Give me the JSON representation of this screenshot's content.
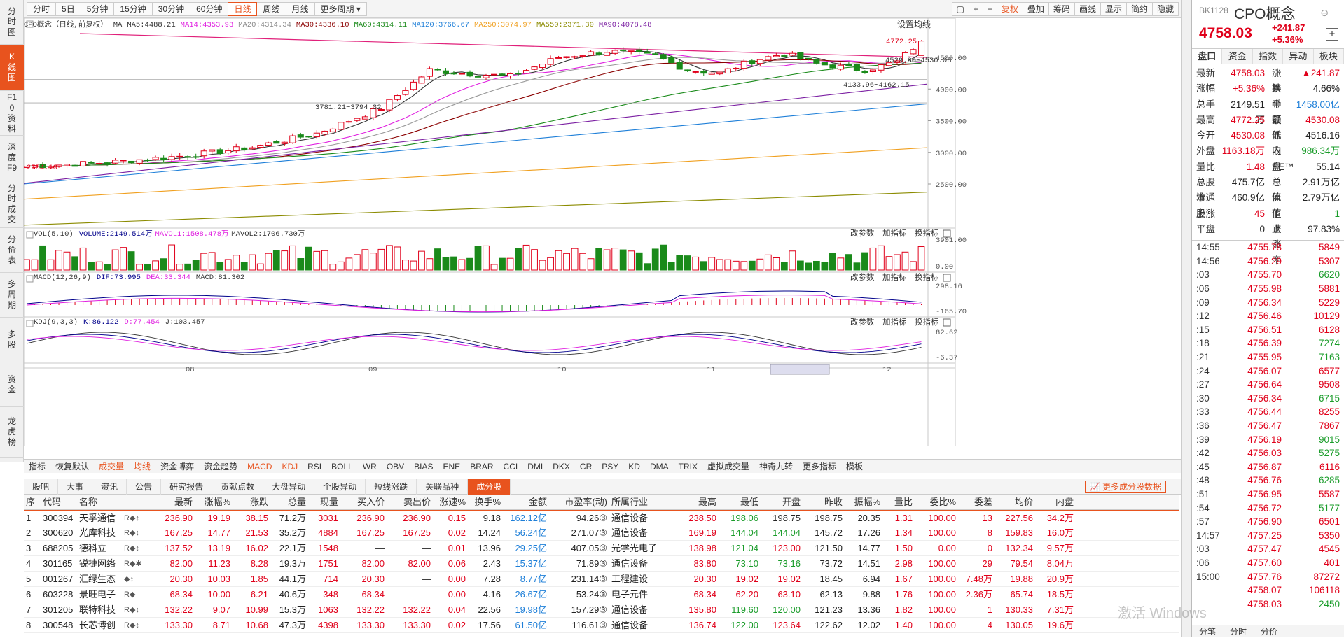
{
  "left_tabs": [
    {
      "label": "分时图",
      "h": 64
    },
    {
      "label": "K线图",
      "h": 66,
      "active": true
    },
    {
      "label": "F10资料",
      "h": 64
    },
    {
      "label": "深度F9",
      "h": 64
    },
    {
      "label": "分时成交",
      "h": 68
    },
    {
      "label": "分价表",
      "h": 64
    },
    {
      "label": "多周期",
      "h": 64
    },
    {
      "label": "多股",
      "h": 64
    },
    {
      "label": "资金",
      "h": 64
    },
    {
      "label": "龙虎榜",
      "h": 72
    }
  ],
  "periods": [
    "分时",
    "5日",
    "5分钟",
    "15分钟",
    "30分钟",
    "60分钟",
    "日线",
    "周线",
    "月线",
    "更多周期"
  ],
  "active_period": "日线",
  "toolbar": [
    "复权",
    "叠加",
    "筹码",
    "画线",
    "显示",
    "简约",
    "隐藏"
  ],
  "chart_title": "CPO概念（日线,前复权）",
  "ma_items": [
    {
      "t": "MA",
      "c": "#333"
    },
    {
      "t": "MA5:4488.21",
      "c": "#333"
    },
    {
      "t": "MA14:4353.93",
      "c": "#e020e0"
    },
    {
      "t": "MA20:4314.34",
      "c": "#888"
    },
    {
      "t": "MA30:4336.10",
      "c": "#8b0000"
    },
    {
      "t": "MA60:4314.11",
      "c": "#1a8a1a"
    },
    {
      "t": "MA120:3766.67",
      "c": "#1e7fd8"
    },
    {
      "t": "MA250:3074.97",
      "c": "#f0a020"
    },
    {
      "t": "MA550:2371.30",
      "c": "#8b8b00"
    },
    {
      "t": "MA90:4078.48",
      "c": "#7b1fa2"
    }
  ],
  "settings_label": "设置均线",
  "annotations": {
    "high": "4772.25",
    "mid": "4529.80~4530.08",
    "low": "4133.96~4162.15",
    "low2": "3781.21~3794.32",
    "start": "2754.19"
  },
  "price_axis": [
    "4500.00",
    "4000.00",
    "3500.00",
    "3000.00",
    "2500.00"
  ],
  "vol": {
    "label": "VOL(5,10)",
    "v": "VOLUME:2149.514万",
    "m1": "MAVOL1:1508.478万",
    "m2": "MAVOL2:1706.730万",
    "axis_top": "3901.00",
    "axis_bot": "0.00"
  },
  "macd": {
    "label": "MACD(12,26,9)",
    "dif": "DIF:73.995",
    "dea": "DEA:33.344",
    "macd": "MACD:81.302",
    "axis_top": "298.16",
    "axis_bot": "-165.70"
  },
  "kdj": {
    "label": "KDJ(9,3,3)",
    "k": "K:86.122",
    "d": "D:77.454",
    "j": "J:103.457",
    "axis_top": "82.62",
    "axis_bot": "-6.37"
  },
  "sub_ctrl": [
    "改参数",
    "加指标",
    "换指标"
  ],
  "date_axis": [
    "08",
    "09",
    "10",
    "11",
    "2025/11/13/四",
    "12"
  ],
  "indicators": [
    "指标",
    "恢复默认",
    "成交量",
    "均线",
    "资金博弈",
    "资金趋势",
    "MACD",
    "KDJ",
    "RSI",
    "BOLL",
    "WR",
    "OBV",
    "BIAS",
    "ENE",
    "BRAR",
    "CCI",
    "DMI",
    "DKX",
    "CR",
    "PSY",
    "KD",
    "DMA",
    "TRIX",
    "虚拟成交量",
    "神奇九转",
    "更多指标",
    "模板"
  ],
  "bottom_tabs": [
    "股吧",
    "大事",
    "资讯",
    "公告",
    "研究报告",
    "贡献点数",
    "大盘异动",
    "个股异动",
    "短线涨跌",
    "关联品种",
    "成分股"
  ],
  "more_btn": "更多成分股数据",
  "table": {
    "headers": [
      "序",
      "代码",
      "名称",
      "",
      "最新",
      "涨幅%",
      "涨跌",
      "总量",
      "现量",
      "买入价",
      "卖出价",
      "涨速%",
      "换手%",
      "金额",
      "市盈率(动)",
      "所属行业",
      "最高",
      "最低",
      "开盘",
      "昨收",
      "振幅%",
      "量比",
      "委比%",
      "委差",
      "均价",
      "内盘"
    ],
    "rows": [
      [
        "1",
        "300394",
        "天孚通信",
        "R◆↕",
        "236.90",
        "19.19",
        "38.15",
        "71.2万",
        "3031",
        "236.90",
        "236.90",
        "0.15",
        "9.18",
        "162.12亿",
        "94.26③",
        "通信设备",
        "238.50",
        "198.06",
        "198.75",
        "198.75",
        "20.35",
        "1.31",
        "100.00",
        "13",
        "227.56",
        "34.2万"
      ],
      [
        "2",
        "300620",
        "光库科技",
        "R◆↕",
        "167.25",
        "14.77",
        "21.53",
        "35.2万",
        "4884",
        "167.25",
        "167.25",
        "0.02",
        "14.24",
        "56.24亿",
        "271.07③",
        "通信设备",
        "169.19",
        "144.04",
        "144.04",
        "145.72",
        "17.26",
        "1.34",
        "100.00",
        "8",
        "159.83",
        "16.0万"
      ],
      [
        "3",
        "688205",
        "德科立",
        "R◆↕",
        "137.52",
        "13.19",
        "16.02",
        "22.1万",
        "1548",
        "—",
        "—",
        "0.01",
        "13.96",
        "29.25亿",
        "407.05③",
        "光学光电子",
        "138.98",
        "121.04",
        "123.00",
        "121.50",
        "14.77",
        "1.50",
        "0.00",
        "0",
        "132.34",
        "9.57万"
      ],
      [
        "4",
        "301165",
        "锐捷网络",
        "R◆✱",
        "82.00",
        "11.23",
        "8.28",
        "19.3万",
        "1751",
        "82.00",
        "82.00",
        "0.06",
        "2.43",
        "15.37亿",
        "71.89③",
        "通信设备",
        "83.80",
        "73.10",
        "73.16",
        "73.72",
        "14.51",
        "2.98",
        "100.00",
        "29",
        "79.54",
        "8.04万"
      ],
      [
        "5",
        "001267",
        "汇绿生态",
        "◆↕",
        "20.30",
        "10.03",
        "1.85",
        "44.1万",
        "714",
        "20.30",
        "—",
        "0.00",
        "7.28",
        "8.77亿",
        "231.14③",
        "工程建设",
        "20.30",
        "19.02",
        "19.02",
        "18.45",
        "6.94",
        "1.67",
        "100.00",
        "7.48万",
        "19.88",
        "20.9万"
      ],
      [
        "6",
        "603228",
        "景旺电子",
        "R◆",
        "68.34",
        "10.00",
        "6.21",
        "40.6万",
        "348",
        "68.34",
        "—",
        "0.00",
        "4.16",
        "26.67亿",
        "53.24③",
        "电子元件",
        "68.34",
        "62.20",
        "63.10",
        "62.13",
        "9.88",
        "1.76",
        "100.00",
        "2.36万",
        "65.74",
        "18.5万"
      ],
      [
        "7",
        "301205",
        "联特科技",
        "R◆↕",
        "132.22",
        "9.07",
        "10.99",
        "15.3万",
        "1063",
        "132.22",
        "132.22",
        "0.04",
        "22.56",
        "19.98亿",
        "157.29③",
        "通信设备",
        "135.80",
        "119.60",
        "120.00",
        "121.23",
        "13.36",
        "1.82",
        "100.00",
        "1",
        "130.33",
        "7.31万"
      ],
      [
        "8",
        "300548",
        "长芯博创",
        "R◆↕",
        "133.30",
        "8.71",
        "10.68",
        "47.3万",
        "4398",
        "133.30",
        "133.30",
        "0.02",
        "17.56",
        "61.50亿",
        "116.61③",
        "通信设备",
        "136.74",
        "122.00",
        "123.64",
        "122.62",
        "12.02",
        "1.40",
        "100.00",
        "4",
        "130.05",
        "19.6万"
      ]
    ]
  },
  "right": {
    "code": "BK1128",
    "name": "CPO概念",
    "price": "4758.03",
    "chg": "+241.87",
    "pct": "+5.36%",
    "tabs": [
      "盘口",
      "资金",
      "指数",
      "异动",
      "板块"
    ],
    "quote": [
      [
        "最新",
        "4758.03",
        "red",
        "涨跌",
        "▲241.87",
        "red"
      ],
      [
        "涨幅",
        "+5.36%",
        "red",
        "换手",
        "4.66%",
        "blk"
      ],
      [
        "总手",
        "2149.51万",
        "blk",
        "金额",
        "1458.00亿",
        "blu"
      ],
      [
        "最高",
        "4772.25",
        "red",
        "最低",
        "4530.08",
        "red"
      ],
      [
        "今开",
        "4530.08",
        "red",
        "昨收",
        "4516.16",
        "blk"
      ],
      [
        "外盘",
        "1163.18万",
        "red",
        "内盘",
        "986.34万",
        "grn"
      ],
      [
        "量比",
        "1.48",
        "red",
        "PE™",
        "55.14",
        "blk"
      ],
      [
        "总股本",
        "475.7亿",
        "blk",
        "总值",
        "2.91万亿",
        "blk"
      ],
      [
        "流通股",
        "460.9亿",
        "blk",
        "流值",
        "2.79万亿",
        "blk"
      ],
      [
        "上涨",
        "45",
        "red",
        "下跌",
        "1",
        "grn"
      ],
      [
        "平盘",
        "0",
        "blk",
        "上涨率",
        "97.83%",
        "blk"
      ]
    ],
    "trades": [
      [
        "14:55",
        "4755.78",
        "5849",
        "red"
      ],
      [
        "14:56",
        "4756.29",
        "5307",
        "red"
      ],
      [
        ":03",
        "4755.70",
        "6620",
        "grn"
      ],
      [
        ":06",
        "4755.98",
        "5881",
        "red"
      ],
      [
        ":09",
        "4756.34",
        "5229",
        "red"
      ],
      [
        ":12",
        "4756.46",
        "10129",
        "red"
      ],
      [
        ":15",
        "4756.51",
        "6128",
        "red"
      ],
      [
        ":18",
        "4756.39",
        "7274",
        "grn"
      ],
      [
        ":21",
        "4755.95",
        "7163",
        "grn"
      ],
      [
        ":24",
        "4756.07",
        "6577",
        "red"
      ],
      [
        ":27",
        "4756.64",
        "9508",
        "red"
      ],
      [
        ":30",
        "4756.34",
        "6715",
        "grn"
      ],
      [
        ":33",
        "4756.44",
        "8255",
        "red"
      ],
      [
        ":36",
        "4756.47",
        "7867",
        "red"
      ],
      [
        ":39",
        "4756.19",
        "9015",
        "grn"
      ],
      [
        ":42",
        "4756.03",
        "5275",
        "grn"
      ],
      [
        ":45",
        "4756.87",
        "6116",
        "red"
      ],
      [
        ":48",
        "4756.76",
        "6285",
        "grn"
      ],
      [
        ":51",
        "4756.95",
        "5587",
        "red"
      ],
      [
        ":54",
        "4756.72",
        "5177",
        "grn"
      ],
      [
        ":57",
        "4756.90",
        "6501",
        "red"
      ],
      [
        "14:57",
        "4757.25",
        "5350",
        "red"
      ],
      [
        ":03",
        "4757.47",
        "4545",
        "red"
      ],
      [
        ":06",
        "4757.60",
        "401",
        "red"
      ],
      [
        "15:00",
        "4757.76",
        "87272",
        "red"
      ],
      [
        "",
        "4758.07",
        "106118",
        "red"
      ],
      [
        "",
        "4758.03",
        "2450",
        "grn"
      ]
    ],
    "foot": [
      "分笔",
      "分时",
      "分价"
    ]
  },
  "watermark": "激活 Windows"
}
